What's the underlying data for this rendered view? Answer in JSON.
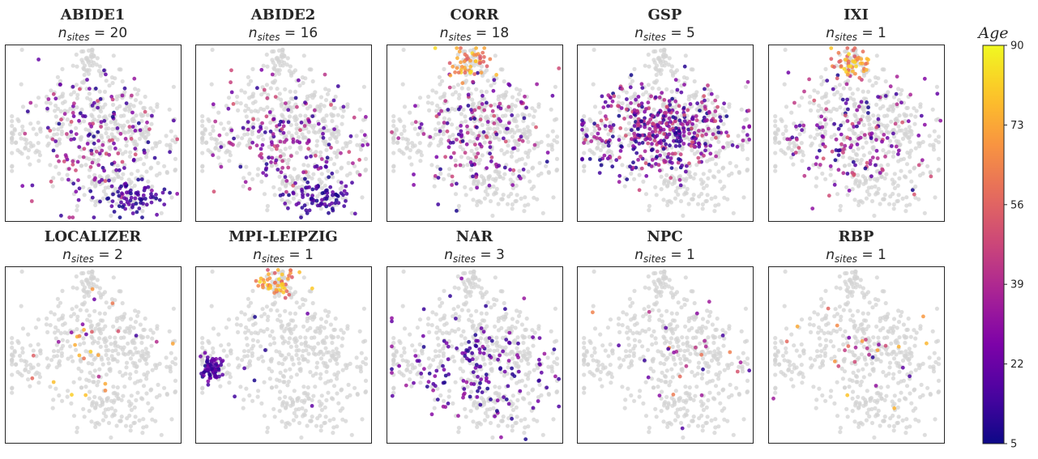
{
  "chart_data": {
    "type": "scatter",
    "colorbar": {
      "title": "Age",
      "min": 5,
      "max": 90,
      "ticks": [
        5,
        22,
        39,
        56,
        73,
        90
      ],
      "colormap": "plasma"
    },
    "background_points_color": "#d3d3d3",
    "panels": [
      {
        "dataset": "ABIDE1",
        "subtitle_var": "n",
        "subtitle_sub": "sites",
        "n_sites": 20,
        "spread": "broad",
        "low_age_cluster": "bottom"
      },
      {
        "dataset": "ABIDE2",
        "subtitle_var": "n",
        "subtitle_sub": "sites",
        "n_sites": 16,
        "spread": "broad",
        "low_age_cluster": "bottom"
      },
      {
        "dataset": "CORR",
        "subtitle_var": "n",
        "subtitle_sub": "sites",
        "n_sites": 18,
        "spread": "broad",
        "high_age_cluster": "top"
      },
      {
        "dataset": "GSP",
        "subtitle_var": "n",
        "subtitle_sub": "sites",
        "n_sites": 5,
        "spread": "dense-center"
      },
      {
        "dataset": "IXI",
        "subtitle_var": "n",
        "subtitle_sub": "sites",
        "n_sites": 1,
        "spread": "broad",
        "high_age_cluster": "top"
      },
      {
        "dataset": "LOCALIZER",
        "subtitle_var": "n",
        "subtitle_sub": "sites",
        "n_sites": 2,
        "spread": "sparse"
      },
      {
        "dataset": "MPI-LEIPZIG",
        "subtitle_var": "n",
        "subtitle_sub": "sites",
        "n_sites": 1,
        "spread": "left-lobe",
        "high_age_cluster": "top"
      },
      {
        "dataset": "NAR",
        "subtitle_var": "n",
        "subtitle_sub": "sites",
        "n_sites": 3,
        "spread": "medium"
      },
      {
        "dataset": "NPC",
        "subtitle_var": "n",
        "subtitle_sub": "sites",
        "n_sites": 1,
        "spread": "sparse"
      },
      {
        "dataset": "RBP",
        "subtitle_var": "n",
        "subtitle_sub": "sites",
        "n_sites": 1,
        "spread": "sparse"
      }
    ]
  }
}
